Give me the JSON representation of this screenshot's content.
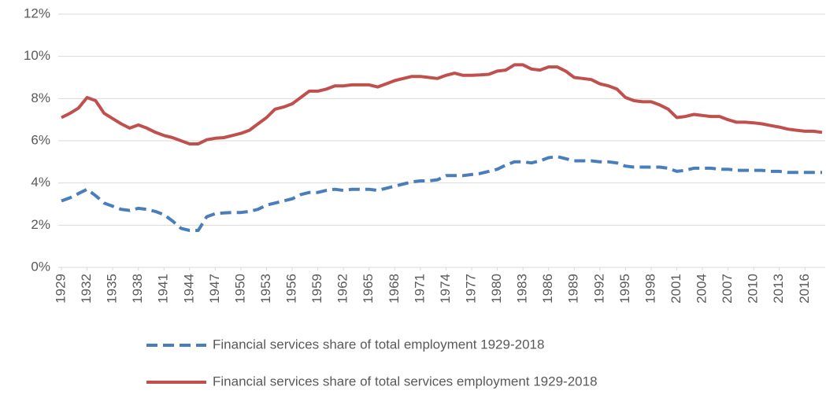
{
  "chart_data": {
    "type": "line",
    "x": [
      1929,
      1930,
      1931,
      1932,
      1933,
      1934,
      1935,
      1936,
      1937,
      1938,
      1939,
      1940,
      1941,
      1942,
      1943,
      1944,
      1945,
      1946,
      1947,
      1948,
      1949,
      1950,
      1951,
      1952,
      1953,
      1954,
      1955,
      1956,
      1957,
      1958,
      1959,
      1960,
      1961,
      1962,
      1963,
      1964,
      1965,
      1966,
      1967,
      1968,
      1969,
      1970,
      1971,
      1972,
      1973,
      1974,
      1975,
      1976,
      1977,
      1978,
      1979,
      1980,
      1981,
      1982,
      1983,
      1984,
      1985,
      1986,
      1987,
      1988,
      1989,
      1990,
      1991,
      1992,
      1993,
      1994,
      1995,
      1996,
      1997,
      1998,
      1999,
      2000,
      2001,
      2002,
      2003,
      2004,
      2005,
      2006,
      2007,
      2008,
      2009,
      2010,
      2011,
      2012,
      2013,
      2014,
      2015,
      2016,
      2017,
      2018
    ],
    "xlim": [
      1929,
      2018
    ],
    "xticks": [
      1929,
      1932,
      1935,
      1938,
      1941,
      1944,
      1947,
      1950,
      1953,
      1956,
      1959,
      1962,
      1965,
      1968,
      1971,
      1974,
      1977,
      1980,
      1983,
      1986,
      1989,
      1992,
      1995,
      1998,
      2001,
      2004,
      2007,
      2010,
      2013,
      2016
    ],
    "ylim": [
      0,
      12
    ],
    "yticks": [
      {
        "value": 0,
        "label": "0%"
      },
      {
        "value": 2,
        "label": "2%"
      },
      {
        "value": 4,
        "label": "4%"
      },
      {
        "value": 6,
        "label": "6%"
      },
      {
        "value": 8,
        "label": "8%"
      },
      {
        "value": 10,
        "label": "10%"
      },
      {
        "value": 12,
        "label": "12%"
      }
    ],
    "grid": true,
    "legend": "bottom",
    "series": [
      {
        "name": "Financial services share of total employment 1929-2018",
        "color": "#4a7ebb",
        "style": "dashed",
        "values": [
          3.15,
          3.3,
          3.5,
          3.7,
          3.4,
          3.05,
          2.9,
          2.75,
          2.7,
          2.8,
          2.75,
          2.65,
          2.5,
          2.2,
          1.85,
          1.75,
          1.75,
          2.4,
          2.55,
          2.58,
          2.6,
          2.6,
          2.65,
          2.75,
          2.95,
          3.05,
          3.15,
          3.25,
          3.45,
          3.55,
          3.55,
          3.65,
          3.7,
          3.65,
          3.7,
          3.7,
          3.7,
          3.65,
          3.75,
          3.85,
          3.95,
          4.05,
          4.1,
          4.1,
          4.15,
          4.35,
          4.35,
          4.35,
          4.4,
          4.45,
          4.55,
          4.65,
          4.85,
          5.0,
          5.0,
          4.95,
          5.05,
          5.2,
          5.25,
          5.15,
          5.05,
          5.05,
          5.05,
          5.0,
          5.0,
          4.95,
          4.8,
          4.75,
          4.75,
          4.75,
          4.75,
          4.7,
          4.55,
          4.6,
          4.7,
          4.7,
          4.7,
          4.65,
          4.65,
          4.6,
          4.6,
          4.6,
          4.6,
          4.55,
          4.55,
          4.5,
          4.5,
          4.5,
          4.5,
          4.5
        ]
      },
      {
        "name": "Financial services share of total services employment 1929-2018",
        "color": "#c0504d",
        "style": "solid",
        "values": [
          7.1,
          7.3,
          7.55,
          8.05,
          7.9,
          7.3,
          7.05,
          6.8,
          6.6,
          6.75,
          6.6,
          6.4,
          6.25,
          6.15,
          6.0,
          5.85,
          5.85,
          6.05,
          6.12,
          6.15,
          6.25,
          6.35,
          6.5,
          6.8,
          7.1,
          7.5,
          7.6,
          7.75,
          8.05,
          8.35,
          8.35,
          8.45,
          8.6,
          8.6,
          8.65,
          8.65,
          8.65,
          8.55,
          8.7,
          8.85,
          8.95,
          9.05,
          9.05,
          9.0,
          8.95,
          9.1,
          9.2,
          9.1,
          9.1,
          9.12,
          9.15,
          9.3,
          9.35,
          9.6,
          9.6,
          9.4,
          9.35,
          9.5,
          9.5,
          9.3,
          9.0,
          8.95,
          8.9,
          8.7,
          8.6,
          8.45,
          8.05,
          7.9,
          7.85,
          7.85,
          7.7,
          7.5,
          7.1,
          7.15,
          7.25,
          7.2,
          7.15,
          7.15,
          7.0,
          6.88,
          6.88,
          6.85,
          6.8,
          6.72,
          6.65,
          6.55,
          6.5,
          6.45,
          6.45,
          6.4
        ]
      }
    ]
  }
}
